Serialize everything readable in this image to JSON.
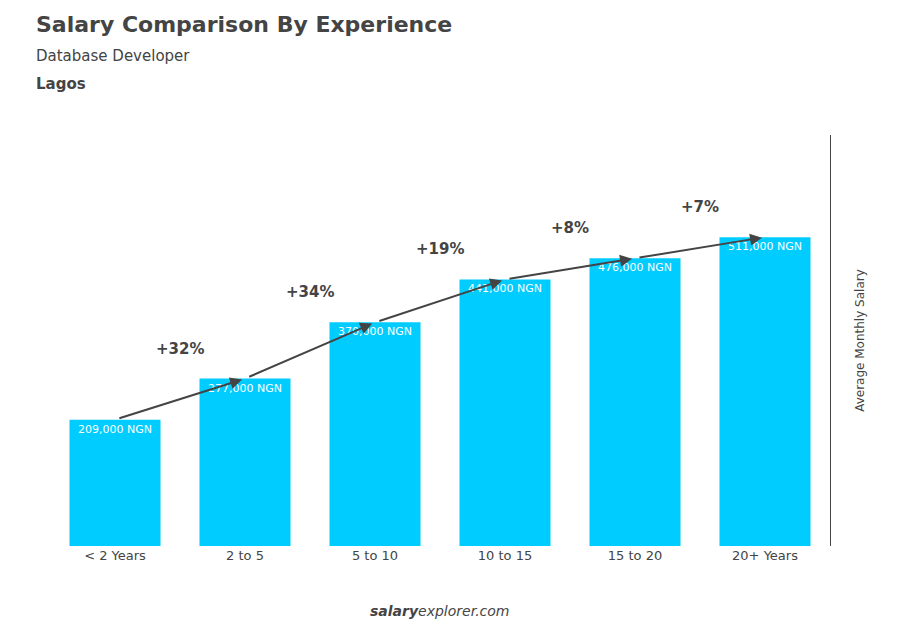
{
  "chart_data": {
    "type": "bar",
    "title": "Salary Comparison By Experience",
    "subtitle": "Database Developer",
    "ylabel": "Average Monthly Salary",
    "categories": [
      "< 2 Years",
      "2 to 5",
      "5 to 10",
      "10 to 15",
      "15 to 20",
      "20+ Years"
    ],
    "values": [
      209000,
      277000,
      370000,
      441000,
      476000,
      511000
    ],
    "value_labels": [
      "209,000 NGN",
      "277,000 NGN",
      "370,000 NGN",
      "441,000 NGN",
      "476,000 NGN",
      "511,000 NGN"
    ],
    "data_labels": true,
    "color": "#00ccff",
    "ylim": [
      0,
      680000
    ],
    "tick_labels": "x",
    "grid": false,
    "annotations": [
      {
        "text": "Lagos"
      },
      {
        "text": "salary"
      },
      {
        "text": "explorer.com"
      },
      {
        "text": "+32%",
        "from": "< 2 Years",
        "to": "2 to 5"
      },
      {
        "text": "+34%",
        "from": "2 to 5",
        "to": "5 to 10"
      },
      {
        "text": "+19%",
        "from": "5 to 10",
        "to": "10 to 15"
      },
      {
        "text": "+8%",
        "from": "10 to 15",
        "to": "15 to 20"
      },
      {
        "text": "+7%",
        "from": "15 to 20",
        "to": "20+ Years"
      }
    ]
  }
}
